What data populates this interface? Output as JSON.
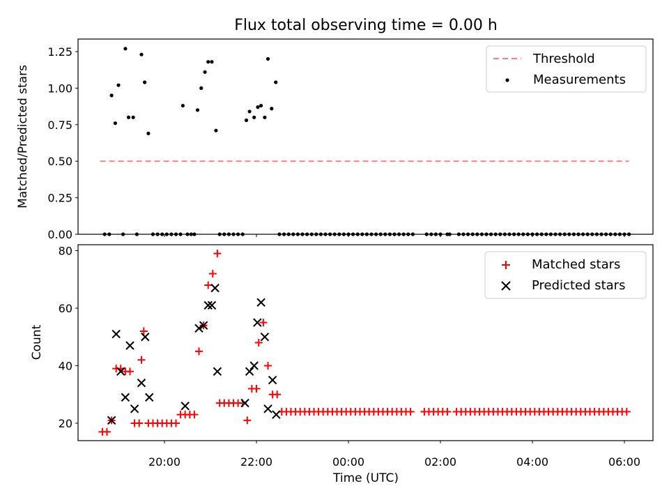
{
  "chart_data": [
    {
      "type": "scatter",
      "title": "Flux total observing time = 0.00 h",
      "xlabel": "",
      "ylabel": "Matched/Predicted stars",
      "ylim": [
        0,
        1.35
      ],
      "yticks": [
        0.0,
        0.25,
        0.5,
        0.75,
        1.0,
        1.25
      ],
      "ytick_labels": [
        "0.00",
        "0.25",
        "0.50",
        "0.75",
        "1.00",
        "1.25"
      ],
      "legend_position": "top-right",
      "threshold": {
        "name": "Threshold",
        "value": 0.5,
        "x_range": [
          -5.4,
          6.1
        ],
        "color": "#ff7f7f"
      },
      "series": [
        {
          "name": "Measurements",
          "color": "#000000",
          "points": [
            [
              -5.3,
              0
            ],
            [
              -5.2,
              0
            ],
            [
              -5.15,
              0.95
            ],
            [
              -5.07,
              0.76
            ],
            [
              -5.0,
              1.02
            ],
            [
              -4.9,
              0
            ],
            [
              -4.85,
              1.27
            ],
            [
              -4.78,
              0.8
            ],
            [
              -4.68,
              0.8
            ],
            [
              -4.6,
              0
            ],
            [
              -4.5,
              1.23
            ],
            [
              -4.43,
              1.04
            ],
            [
              -4.35,
              0.69
            ],
            [
              -4.25,
              0
            ],
            [
              -4.15,
              0
            ],
            [
              -4.05,
              0
            ],
            [
              -3.95,
              0
            ],
            [
              -3.85,
              0
            ],
            [
              -3.75,
              0
            ],
            [
              -3.65,
              0
            ],
            [
              -3.6,
              0.88
            ],
            [
              -3.5,
              0
            ],
            [
              -3.42,
              0
            ],
            [
              -3.35,
              0
            ],
            [
              -3.28,
              0.85
            ],
            [
              -3.2,
              1.0
            ],
            [
              -3.12,
              1.11
            ],
            [
              -3.05,
              1.18
            ],
            [
              -2.97,
              1.18
            ],
            [
              -2.88,
              0.71
            ],
            [
              -2.8,
              0
            ],
            [
              -2.7,
              0
            ],
            [
              -2.6,
              0
            ],
            [
              -2.5,
              0
            ],
            [
              -2.4,
              0
            ],
            [
              -2.3,
              0
            ],
            [
              -2.22,
              0.78
            ],
            [
              -2.15,
              0.84
            ],
            [
              -2.05,
              0.8
            ],
            [
              -1.97,
              0.87
            ],
            [
              -1.9,
              0.88
            ],
            [
              -1.82,
              0.8
            ],
            [
              -1.75,
              1.2
            ],
            [
              -1.67,
              0.86
            ],
            [
              -1.58,
              1.04
            ],
            [
              -1.5,
              0
            ],
            [
              -1.4,
              0
            ],
            [
              -1.3,
              0
            ],
            [
              -1.2,
              0
            ],
            [
              -1.1,
              0
            ],
            [
              -1.0,
              0
            ],
            [
              -0.9,
              0
            ],
            [
              -0.8,
              0
            ],
            [
              -0.7,
              0
            ],
            [
              -0.6,
              0
            ],
            [
              -0.5,
              0
            ],
            [
              -0.4,
              0
            ],
            [
              -0.3,
              0
            ],
            [
              -0.2,
              0
            ],
            [
              -0.1,
              0
            ],
            [
              0.0,
              0
            ],
            [
              0.1,
              0
            ],
            [
              0.2,
              0
            ],
            [
              0.3,
              0
            ],
            [
              0.4,
              0
            ],
            [
              0.5,
              0
            ],
            [
              0.6,
              0
            ],
            [
              0.7,
              0
            ],
            [
              0.8,
              0
            ],
            [
              0.9,
              0
            ],
            [
              1.0,
              0
            ],
            [
              1.1,
              0
            ],
            [
              1.2,
              0
            ],
            [
              1.3,
              0
            ],
            [
              1.4,
              0
            ],
            [
              1.7,
              0
            ],
            [
              1.8,
              0
            ],
            [
              1.9,
              0
            ],
            [
              2.0,
              0
            ],
            [
              2.15,
              0
            ],
            [
              2.2,
              0
            ],
            [
              2.4,
              0
            ],
            [
              2.5,
              0
            ],
            [
              2.6,
              0
            ],
            [
              2.7,
              0
            ],
            [
              2.8,
              0
            ],
            [
              2.9,
              0
            ],
            [
              3.0,
              0
            ],
            [
              3.1,
              0
            ],
            [
              3.2,
              0
            ],
            [
              3.3,
              0
            ],
            [
              3.4,
              0
            ],
            [
              3.5,
              0
            ],
            [
              3.6,
              0
            ],
            [
              3.7,
              0
            ],
            [
              3.8,
              0
            ],
            [
              3.9,
              0
            ],
            [
              4.0,
              0
            ],
            [
              4.1,
              0
            ],
            [
              4.2,
              0
            ],
            [
              4.3,
              0
            ],
            [
              4.4,
              0
            ],
            [
              4.5,
              0
            ],
            [
              4.6,
              0
            ],
            [
              4.7,
              0
            ],
            [
              4.8,
              0
            ],
            [
              4.9,
              0
            ],
            [
              5.0,
              0
            ],
            [
              5.1,
              0
            ],
            [
              5.2,
              0
            ],
            [
              5.3,
              0
            ],
            [
              5.4,
              0
            ],
            [
              5.5,
              0
            ],
            [
              5.6,
              0
            ],
            [
              5.7,
              0
            ],
            [
              5.8,
              0
            ],
            [
              5.9,
              0
            ],
            [
              6.0,
              0
            ],
            [
              6.1,
              0
            ]
          ]
        }
      ]
    },
    {
      "type": "scatter",
      "title": "",
      "xlabel": "Time (UTC)",
      "ylabel": "Count",
      "ylim": [
        14,
        82
      ],
      "yticks": [
        20,
        40,
        60,
        80
      ],
      "ytick_labels": [
        "20",
        "40",
        "60",
        "80"
      ],
      "xticks": [
        -4,
        -2,
        0,
        2,
        4,
        6
      ],
      "xtick_labels": [
        "20:00",
        "22:00",
        "00:00",
        "02:00",
        "04:00",
        "06:00"
      ],
      "legend_position": "top-right",
      "series": [
        {
          "name": "Matched stars",
          "marker": "plus",
          "color": "#ff0000",
          "points": [
            [
              -5.35,
              17
            ],
            [
              -5.25,
              17
            ],
            [
              -5.15,
              21
            ],
            [
              -5.05,
              39
            ],
            [
              -4.95,
              39
            ],
            [
              -4.85,
              38
            ],
            [
              -4.75,
              38
            ],
            [
              -4.65,
              20
            ],
            [
              -4.55,
              20
            ],
            [
              -4.5,
              42
            ],
            [
              -4.45,
              52
            ],
            [
              -4.35,
              20
            ],
            [
              -4.25,
              20
            ],
            [
              -4.15,
              20
            ],
            [
              -4.05,
              20
            ],
            [
              -3.95,
              20
            ],
            [
              -3.85,
              20
            ],
            [
              -3.75,
              20
            ],
            [
              -3.65,
              23
            ],
            [
              -3.55,
              23
            ],
            [
              -3.45,
              23
            ],
            [
              -3.35,
              23
            ],
            [
              -3.25,
              45
            ],
            [
              -3.15,
              54
            ],
            [
              -3.05,
              68
            ],
            [
              -2.95,
              72
            ],
            [
              -2.85,
              79
            ],
            [
              -2.8,
              27
            ],
            [
              -2.7,
              27
            ],
            [
              -2.6,
              27
            ],
            [
              -2.5,
              27
            ],
            [
              -2.4,
              27
            ],
            [
              -2.3,
              27
            ],
            [
              -2.2,
              21
            ],
            [
              -2.1,
              32
            ],
            [
              -2.0,
              32
            ],
            [
              -1.95,
              48
            ],
            [
              -1.85,
              55
            ],
            [
              -1.75,
              40
            ],
            [
              -1.65,
              30
            ],
            [
              -1.55,
              30
            ],
            [
              -1.45,
              24
            ],
            [
              -1.35,
              24
            ],
            [
              -1.25,
              24
            ],
            [
              -1.15,
              24
            ],
            [
              -1.05,
              24
            ],
            [
              -0.95,
              24
            ],
            [
              -0.85,
              24
            ],
            [
              -0.75,
              24
            ],
            [
              -0.65,
              24
            ],
            [
              -0.55,
              24
            ],
            [
              -0.45,
              24
            ],
            [
              -0.35,
              24
            ],
            [
              -0.25,
              24
            ],
            [
              -0.15,
              24
            ],
            [
              -0.05,
              24
            ],
            [
              0.05,
              24
            ],
            [
              0.15,
              24
            ],
            [
              0.25,
              24
            ],
            [
              0.35,
              24
            ],
            [
              0.45,
              24
            ],
            [
              0.55,
              24
            ],
            [
              0.65,
              24
            ],
            [
              0.75,
              24
            ],
            [
              0.85,
              24
            ],
            [
              0.95,
              24
            ],
            [
              1.05,
              24
            ],
            [
              1.15,
              24
            ],
            [
              1.25,
              24
            ],
            [
              1.35,
              24
            ],
            [
              1.65,
              24
            ],
            [
              1.75,
              24
            ],
            [
              1.85,
              24
            ],
            [
              1.95,
              24
            ],
            [
              2.05,
              24
            ],
            [
              2.15,
              24
            ],
            [
              2.35,
              24
            ],
            [
              2.45,
              24
            ],
            [
              2.55,
              24
            ],
            [
              2.65,
              24
            ],
            [
              2.75,
              24
            ],
            [
              2.85,
              24
            ],
            [
              2.95,
              24
            ],
            [
              3.05,
              24
            ],
            [
              3.15,
              24
            ],
            [
              3.25,
              24
            ],
            [
              3.35,
              24
            ],
            [
              3.45,
              24
            ],
            [
              3.55,
              24
            ],
            [
              3.65,
              24
            ],
            [
              3.75,
              24
            ],
            [
              3.85,
              24
            ],
            [
              3.95,
              24
            ],
            [
              4.05,
              24
            ],
            [
              4.15,
              24
            ],
            [
              4.25,
              24
            ],
            [
              4.35,
              24
            ],
            [
              4.45,
              24
            ],
            [
              4.55,
              24
            ],
            [
              4.65,
              24
            ],
            [
              4.75,
              24
            ],
            [
              4.85,
              24
            ],
            [
              4.95,
              24
            ],
            [
              5.05,
              24
            ],
            [
              5.15,
              24
            ],
            [
              5.25,
              24
            ],
            [
              5.35,
              24
            ],
            [
              5.45,
              24
            ],
            [
              5.55,
              24
            ],
            [
              5.65,
              24
            ],
            [
              5.75,
              24
            ],
            [
              5.85,
              24
            ],
            [
              5.95,
              24
            ],
            [
              6.05,
              24
            ]
          ]
        },
        {
          "name": "Predicted stars",
          "marker": "x",
          "color": "#000000",
          "points": [
            [
              -5.15,
              21
            ],
            [
              -5.05,
              51
            ],
            [
              -4.95,
              38
            ],
            [
              -4.85,
              29
            ],
            [
              -4.75,
              47
            ],
            [
              -4.65,
              25
            ],
            [
              -4.5,
              34
            ],
            [
              -4.42,
              50
            ],
            [
              -4.33,
              29
            ],
            [
              -3.55,
              26
            ],
            [
              -3.25,
              53
            ],
            [
              -3.15,
              54
            ],
            [
              -3.05,
              61
            ],
            [
              -2.97,
              61
            ],
            [
              -2.9,
              67
            ],
            [
              -2.85,
              38
            ],
            [
              -2.25,
              27
            ],
            [
              -2.15,
              38
            ],
            [
              -2.05,
              40
            ],
            [
              -1.98,
              55
            ],
            [
              -1.9,
              62
            ],
            [
              -1.82,
              50
            ],
            [
              -1.75,
              25
            ],
            [
              -1.65,
              35
            ],
            [
              -1.57,
              23
            ]
          ]
        }
      ]
    }
  ]
}
